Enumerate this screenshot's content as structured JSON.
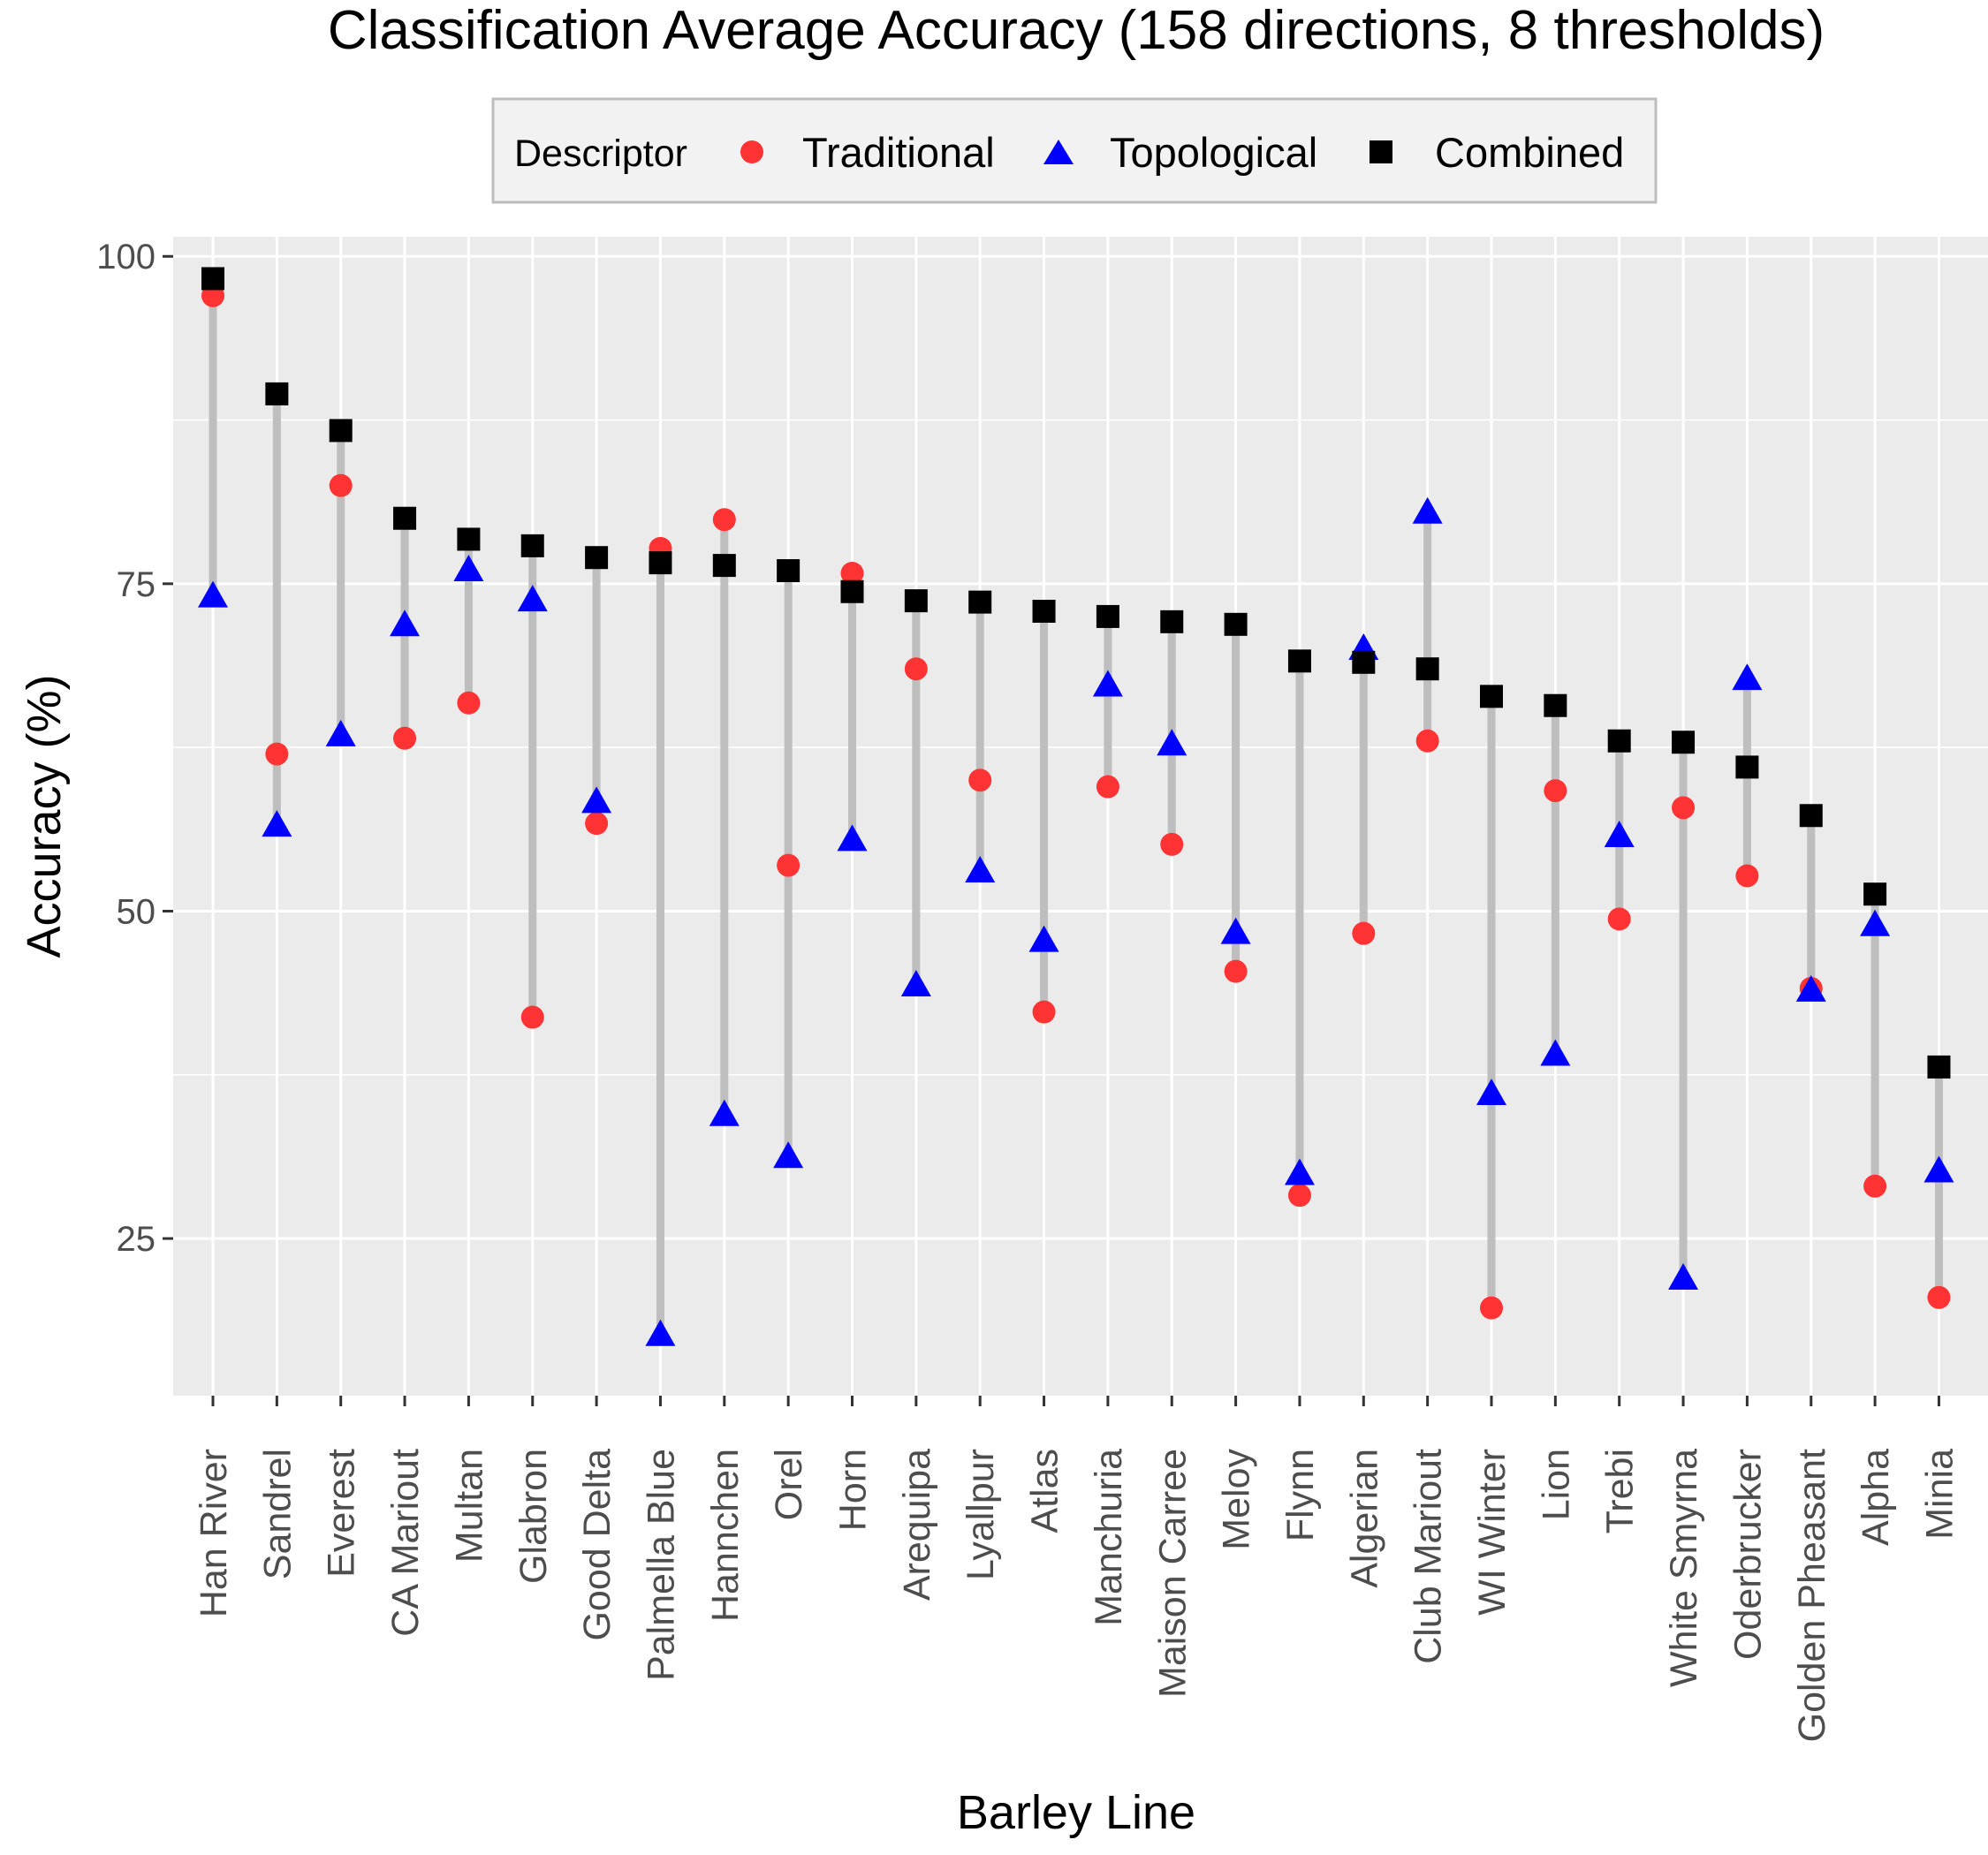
{
  "chart_data": {
    "type": "scatter",
    "title": "Classification Average Accuracy (158 directions, 8 thresholds)",
    "xlabel": "Barley Line",
    "ylabel": "Accuracy (%)",
    "ylim": [
      13,
      101.5
    ],
    "yticks": [
      25,
      50,
      75,
      100
    ],
    "grid": true,
    "legend": {
      "title": "Descriptor",
      "position": "top",
      "entries": [
        {
          "name": "Traditional",
          "shape": "circle",
          "color": "#ff3333"
        },
        {
          "name": "Topological",
          "shape": "triangle",
          "color": "#0000ff"
        },
        {
          "name": "Combined",
          "shape": "square",
          "color": "#000000"
        }
      ]
    },
    "segment_color": "#bebebe",
    "categories": [
      "Han River",
      "Sandrel",
      "Everest",
      "CA Mariout",
      "Multan",
      "Glabron",
      "Good Delta",
      "Palmella Blue",
      "Hannchen",
      "Orel",
      "Horn",
      "Arequipa",
      "Lyallpur",
      "Atlas",
      "Manchuria",
      "Maison Carree",
      "Meloy",
      "Flynn",
      "Algerian",
      "Club Mariout",
      "WI Winter",
      "Lion",
      "Trebi",
      "White Smyrna",
      "Oderbrucker",
      "Golden Pheasant",
      "Alpha",
      "Minia"
    ],
    "series": [
      {
        "name": "Traditional",
        "values": [
          97.0,
          62.0,
          82.5,
          63.2,
          65.9,
          41.9,
          56.7,
          77.7,
          79.9,
          53.5,
          75.8,
          68.5,
          60.0,
          42.3,
          59.5,
          55.1,
          45.4,
          28.3,
          48.3,
          63.0,
          19.7,
          59.2,
          49.4,
          57.9,
          52.7,
          44.1,
          29.0,
          20.5
        ]
      },
      {
        "name": "Topological",
        "values": [
          74.0,
          56.5,
          63.4,
          71.8,
          76.0,
          73.7,
          58.3,
          17.6,
          34.4,
          31.2,
          55.4,
          44.3,
          53.0,
          47.7,
          67.2,
          62.7,
          48.3,
          29.9,
          70.0,
          80.4,
          36.0,
          39.0,
          55.7,
          21.9,
          67.7,
          43.9,
          48.9,
          30.1
        ]
      },
      {
        "name": "Combined",
        "values": [
          98.3,
          89.5,
          86.7,
          80.0,
          78.4,
          77.9,
          77.0,
          76.6,
          76.4,
          76.0,
          74.4,
          73.7,
          73.6,
          72.9,
          72.5,
          72.1,
          71.9,
          69.1,
          69.0,
          68.5,
          66.4,
          65.7,
          63.0,
          62.9,
          61.0,
          57.3,
          51.3,
          38.1
        ]
      }
    ]
  }
}
